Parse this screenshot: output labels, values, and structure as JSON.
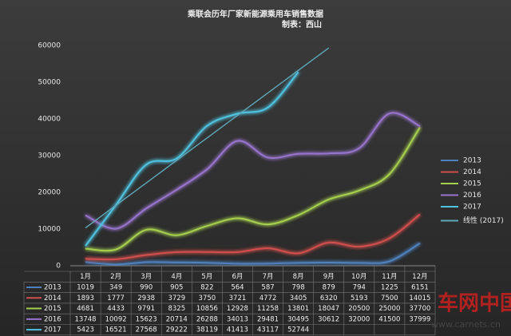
{
  "chart_data": {
    "type": "line",
    "title": "乘联会历年厂家新能源乘用车销售数据",
    "subtitle": "制表：西山",
    "categories": [
      "1月",
      "2月",
      "3月",
      "4月",
      "5月",
      "6月",
      "7月",
      "8月",
      "9月",
      "10月",
      "11月",
      "12月"
    ],
    "ylim": [
      0,
      60000
    ],
    "yticks": [
      0,
      10000,
      20000,
      30000,
      40000,
      50000,
      60000
    ],
    "grid": false,
    "legend": "right",
    "series": [
      {
        "name": "2013",
        "color": "#4f81bd",
        "values": [
          1019,
          349,
          990,
          905,
          822,
          564,
          587,
          798,
          879,
          794,
          1225,
          6151
        ]
      },
      {
        "name": "2014",
        "color": "#d0504d",
        "values": [
          1893,
          1777,
          2938,
          3729,
          3750,
          3721,
          4772,
          3405,
          6320,
          5193,
          7500,
          14015
        ]
      },
      {
        "name": "2015",
        "color": "#a6cf4f",
        "values": [
          4681,
          4433,
          9791,
          8325,
          10856,
          12928,
          11258,
          13801,
          18047,
          20500,
          25000,
          37700
        ]
      },
      {
        "name": "2016",
        "color": "#9874cc",
        "values": [
          13748,
          10092,
          15623,
          20714,
          26288,
          34013,
          29481,
          30495,
          30612,
          32000,
          41500,
          37999
        ]
      },
      {
        "name": "2017",
        "color": "#4fc3e0",
        "values": [
          5423,
          16521,
          27568,
          29222,
          38119,
          41413,
          43117,
          52744,
          null,
          null,
          null,
          null
        ]
      },
      {
        "name": "线性 (2017)",
        "color": "#5fa8b8",
        "trend": true,
        "values": [
          10322,
          16449,
          22576,
          28703,
          34830,
          40957,
          47084,
          53211,
          59337,
          null,
          null,
          null
        ]
      }
    ]
  },
  "watermark": {
    "text": "车网中国",
    "url": "www.carnets.cn"
  }
}
